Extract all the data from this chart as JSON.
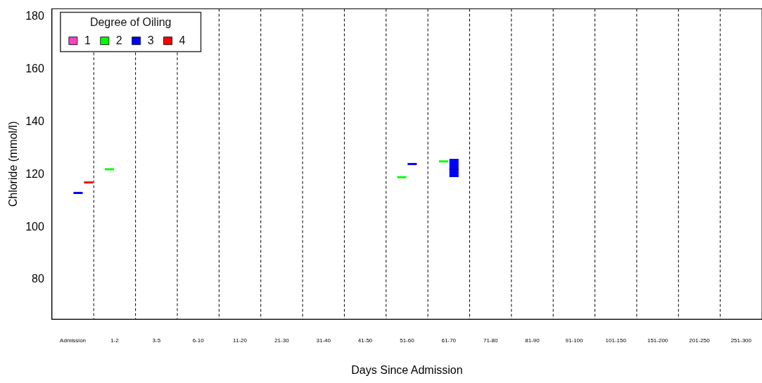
{
  "chart_data": {
    "type": "box",
    "xlabel": "Days Since Admission",
    "ylabel": "Chloride (mmol/l)",
    "legend_title": "Degree of Oiling",
    "legend": "top left",
    "grid": false,
    "categories": [
      "Admission",
      "1-2",
      "3-5",
      "6-10",
      "11-20",
      "21-30",
      "31-40",
      "41-50",
      "51-60",
      "61-70",
      "71-80",
      "81-90",
      "91-100",
      "101-150",
      "151-200",
      "201-250",
      "251-300"
    ],
    "ylim": [
      65,
      183
    ],
    "yticks": [
      80,
      100,
      120,
      140,
      160,
      180
    ],
    "series": [
      {
        "name": "1",
        "color": "#ff40c0",
        "boxes": [
          null,
          null,
          null,
          null,
          null,
          null,
          null,
          null,
          null,
          null,
          null,
          null,
          null,
          null,
          null,
          null,
          null
        ]
      },
      {
        "name": "2",
        "color": "#00ff00",
        "boxes": [
          null,
          {
            "low": 122,
            "q1": 122,
            "median": 122,
            "q3": 122,
            "high": 122
          },
          null,
          null,
          null,
          null,
          null,
          null,
          {
            "low": 119,
            "q1": 119,
            "median": 119,
            "q3": 119,
            "high": 119
          },
          {
            "low": 125,
            "q1": 125,
            "median": 125,
            "q3": 125,
            "high": 125
          },
          null,
          null,
          null,
          null,
          null,
          null,
          null
        ]
      },
      {
        "name": "3",
        "color": "#0000ff",
        "boxes": [
          {
            "low": 113,
            "q1": 113,
            "median": 113,
            "q3": 113,
            "high": 113
          },
          null,
          null,
          null,
          null,
          null,
          null,
          null,
          {
            "low": 124,
            "q1": 124,
            "median": 124,
            "q3": 124,
            "high": 124
          },
          {
            "low": 119,
            "q1": 119,
            "median": 122,
            "q3": 126,
            "high": 126
          },
          null,
          null,
          null,
          null,
          null,
          null,
          null
        ]
      },
      {
        "name": "4",
        "color": "#ff0000",
        "boxes": [
          {
            "low": 117,
            "q1": 117,
            "median": 117,
            "q3": 117,
            "high": 117
          },
          null,
          null,
          null,
          null,
          null,
          null,
          null,
          null,
          null,
          null,
          null,
          null,
          null,
          null,
          null,
          null
        ]
      }
    ]
  }
}
